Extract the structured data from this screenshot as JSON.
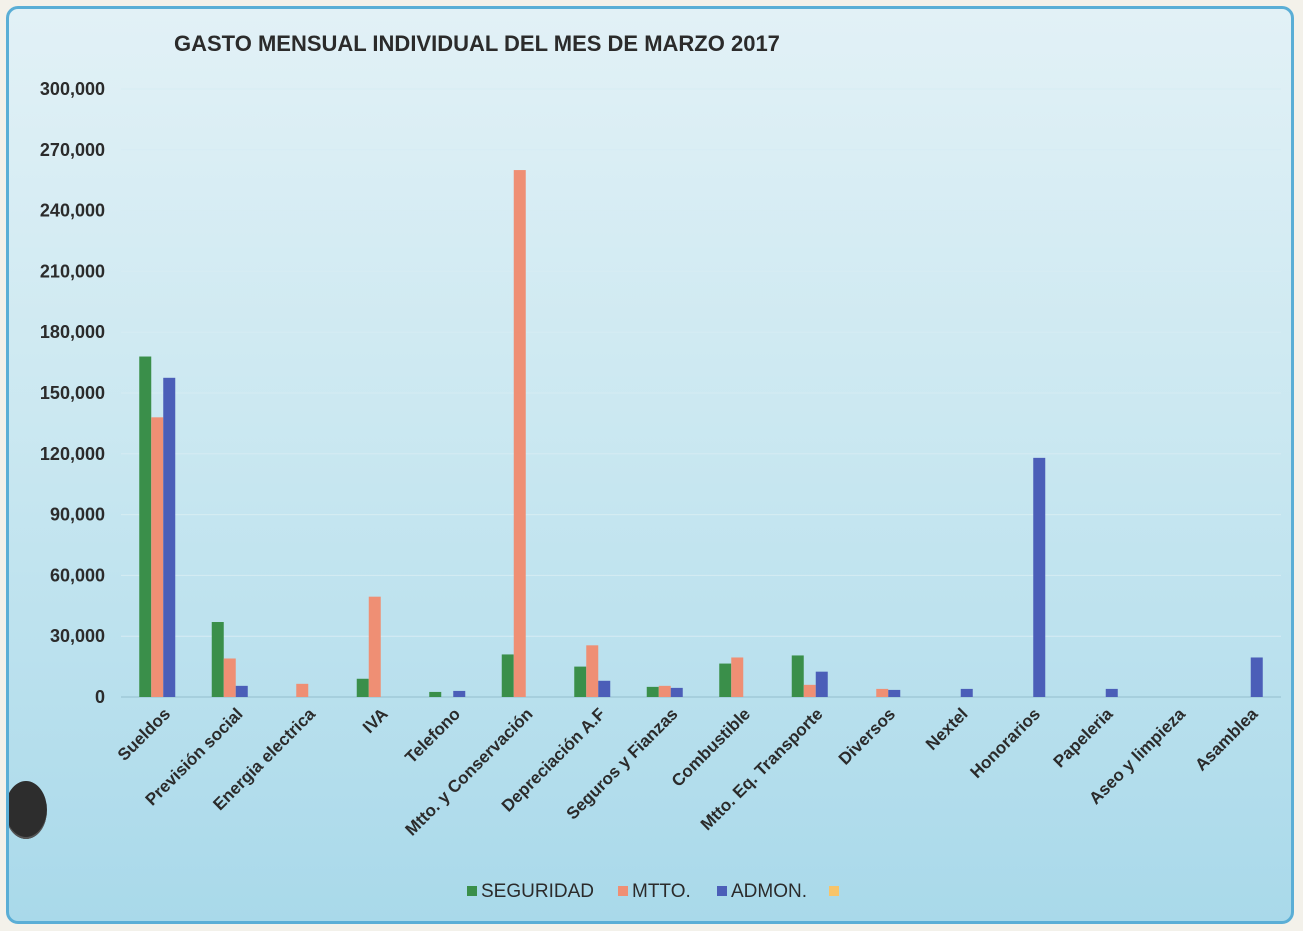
{
  "chart_data": {
    "type": "bar",
    "title": "GASTO MENSUAL INDIVIDUAL DEL MES DE MARZO 2017",
    "xlabel": "",
    "ylabel": "",
    "ylim": [
      0,
      300000
    ],
    "yticks": [
      0,
      30000,
      60000,
      90000,
      120000,
      150000,
      180000,
      210000,
      240000,
      270000,
      300000
    ],
    "ytick_labels": [
      "0",
      "30,000",
      "60,000",
      "90,000",
      "120,000",
      "150,000",
      "180,000",
      "210,000",
      "240,000",
      "270,000",
      "300,000"
    ],
    "grid": true,
    "legend_position": "bottom",
    "categories": [
      "Sueldos",
      "Previsión social",
      "Energia electrica",
      "IVA",
      "Telefono",
      "Mtto. y Conservación",
      "Depreciación A.F",
      "Seguros y Fianzas",
      "Combustible",
      "Mtto. Eq. Transporte",
      "Diversos",
      "Nextel",
      "Honorarios",
      "Papeleria",
      "Aseo y limpieza",
      "Asamblea"
    ],
    "series": [
      {
        "name": "SEGURIDAD",
        "color": "#3a8f4a",
        "values": [
          168000,
          37000,
          0,
          9000,
          2500,
          21000,
          15000,
          5000,
          16500,
          20500,
          0,
          0,
          0,
          0,
          0,
          0
        ]
      },
      {
        "name": "MTTO.",
        "color": "#ef8f74",
        "values": [
          138000,
          19000,
          6500,
          49500,
          0,
          260000,
          25500,
          5500,
          19500,
          6000,
          4000,
          0,
          0,
          0,
          0,
          0
        ]
      },
      {
        "name": "ADMON.",
        "color": "#4b5eb8",
        "values": [
          157500,
          5500,
          0,
          0,
          3000,
          0,
          8000,
          4500,
          0,
          12500,
          3500,
          4000,
          118000,
          4000,
          0,
          19500
        ]
      },
      {
        "name": "",
        "color": "#f7c46a",
        "values": [
          0,
          0,
          0,
          0,
          0,
          0,
          0,
          0,
          0,
          0,
          0,
          0,
          0,
          0,
          0,
          0
        ]
      }
    ]
  }
}
